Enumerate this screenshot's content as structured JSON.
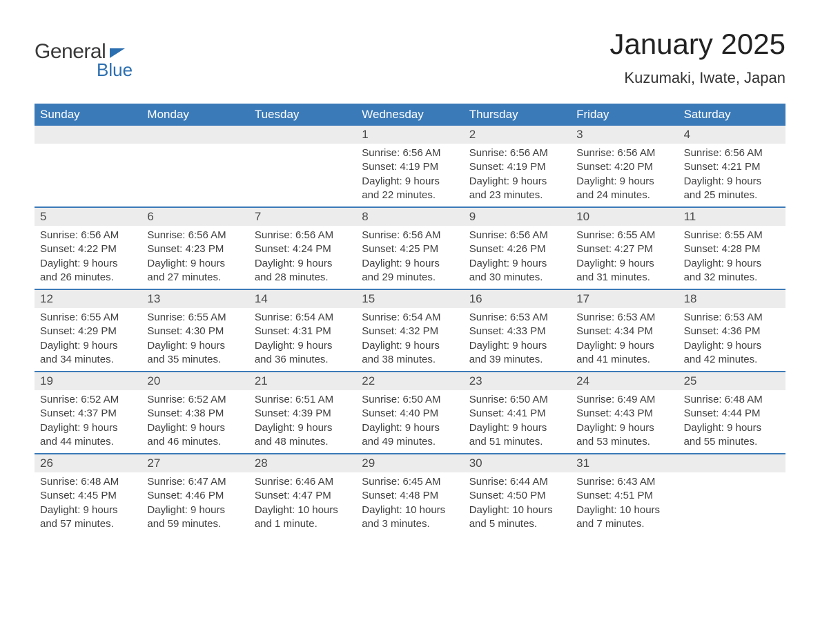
{
  "logo": {
    "text1": "General",
    "text2": "Blue"
  },
  "title": "January 2025",
  "location": "Kuzumaki, Iwate, Japan",
  "colors": {
    "header_bg": "#3b7ab8",
    "header_text": "#ffffff",
    "daynum_bg": "#ececec",
    "body_text": "#404040",
    "brand_blue": "#2c6fb0"
  },
  "typography": {
    "title_fontsize": 42,
    "location_fontsize": 22,
    "dayhead_fontsize": 17,
    "cell_fontsize": 15
  },
  "day_names": [
    "Sunday",
    "Monday",
    "Tuesday",
    "Wednesday",
    "Thursday",
    "Friday",
    "Saturday"
  ],
  "weeks": [
    [
      null,
      null,
      null,
      {
        "num": "1",
        "sunrise": "Sunrise: 6:56 AM",
        "sunset": "Sunset: 4:19 PM",
        "daylight": "Daylight: 9 hours and 22 minutes."
      },
      {
        "num": "2",
        "sunrise": "Sunrise: 6:56 AM",
        "sunset": "Sunset: 4:19 PM",
        "daylight": "Daylight: 9 hours and 23 minutes."
      },
      {
        "num": "3",
        "sunrise": "Sunrise: 6:56 AM",
        "sunset": "Sunset: 4:20 PM",
        "daylight": "Daylight: 9 hours and 24 minutes."
      },
      {
        "num": "4",
        "sunrise": "Sunrise: 6:56 AM",
        "sunset": "Sunset: 4:21 PM",
        "daylight": "Daylight: 9 hours and 25 minutes."
      }
    ],
    [
      {
        "num": "5",
        "sunrise": "Sunrise: 6:56 AM",
        "sunset": "Sunset: 4:22 PM",
        "daylight": "Daylight: 9 hours and 26 minutes."
      },
      {
        "num": "6",
        "sunrise": "Sunrise: 6:56 AM",
        "sunset": "Sunset: 4:23 PM",
        "daylight": "Daylight: 9 hours and 27 minutes."
      },
      {
        "num": "7",
        "sunrise": "Sunrise: 6:56 AM",
        "sunset": "Sunset: 4:24 PM",
        "daylight": "Daylight: 9 hours and 28 minutes."
      },
      {
        "num": "8",
        "sunrise": "Sunrise: 6:56 AM",
        "sunset": "Sunset: 4:25 PM",
        "daylight": "Daylight: 9 hours and 29 minutes."
      },
      {
        "num": "9",
        "sunrise": "Sunrise: 6:56 AM",
        "sunset": "Sunset: 4:26 PM",
        "daylight": "Daylight: 9 hours and 30 minutes."
      },
      {
        "num": "10",
        "sunrise": "Sunrise: 6:55 AM",
        "sunset": "Sunset: 4:27 PM",
        "daylight": "Daylight: 9 hours and 31 minutes."
      },
      {
        "num": "11",
        "sunrise": "Sunrise: 6:55 AM",
        "sunset": "Sunset: 4:28 PM",
        "daylight": "Daylight: 9 hours and 32 minutes."
      }
    ],
    [
      {
        "num": "12",
        "sunrise": "Sunrise: 6:55 AM",
        "sunset": "Sunset: 4:29 PM",
        "daylight": "Daylight: 9 hours and 34 minutes."
      },
      {
        "num": "13",
        "sunrise": "Sunrise: 6:55 AM",
        "sunset": "Sunset: 4:30 PM",
        "daylight": "Daylight: 9 hours and 35 minutes."
      },
      {
        "num": "14",
        "sunrise": "Sunrise: 6:54 AM",
        "sunset": "Sunset: 4:31 PM",
        "daylight": "Daylight: 9 hours and 36 minutes."
      },
      {
        "num": "15",
        "sunrise": "Sunrise: 6:54 AM",
        "sunset": "Sunset: 4:32 PM",
        "daylight": "Daylight: 9 hours and 38 minutes."
      },
      {
        "num": "16",
        "sunrise": "Sunrise: 6:53 AM",
        "sunset": "Sunset: 4:33 PM",
        "daylight": "Daylight: 9 hours and 39 minutes."
      },
      {
        "num": "17",
        "sunrise": "Sunrise: 6:53 AM",
        "sunset": "Sunset: 4:34 PM",
        "daylight": "Daylight: 9 hours and 41 minutes."
      },
      {
        "num": "18",
        "sunrise": "Sunrise: 6:53 AM",
        "sunset": "Sunset: 4:36 PM",
        "daylight": "Daylight: 9 hours and 42 minutes."
      }
    ],
    [
      {
        "num": "19",
        "sunrise": "Sunrise: 6:52 AM",
        "sunset": "Sunset: 4:37 PM",
        "daylight": "Daylight: 9 hours and 44 minutes."
      },
      {
        "num": "20",
        "sunrise": "Sunrise: 6:52 AM",
        "sunset": "Sunset: 4:38 PM",
        "daylight": "Daylight: 9 hours and 46 minutes."
      },
      {
        "num": "21",
        "sunrise": "Sunrise: 6:51 AM",
        "sunset": "Sunset: 4:39 PM",
        "daylight": "Daylight: 9 hours and 48 minutes."
      },
      {
        "num": "22",
        "sunrise": "Sunrise: 6:50 AM",
        "sunset": "Sunset: 4:40 PM",
        "daylight": "Daylight: 9 hours and 49 minutes."
      },
      {
        "num": "23",
        "sunrise": "Sunrise: 6:50 AM",
        "sunset": "Sunset: 4:41 PM",
        "daylight": "Daylight: 9 hours and 51 minutes."
      },
      {
        "num": "24",
        "sunrise": "Sunrise: 6:49 AM",
        "sunset": "Sunset: 4:43 PM",
        "daylight": "Daylight: 9 hours and 53 minutes."
      },
      {
        "num": "25",
        "sunrise": "Sunrise: 6:48 AM",
        "sunset": "Sunset: 4:44 PM",
        "daylight": "Daylight: 9 hours and 55 minutes."
      }
    ],
    [
      {
        "num": "26",
        "sunrise": "Sunrise: 6:48 AM",
        "sunset": "Sunset: 4:45 PM",
        "daylight": "Daylight: 9 hours and 57 minutes."
      },
      {
        "num": "27",
        "sunrise": "Sunrise: 6:47 AM",
        "sunset": "Sunset: 4:46 PM",
        "daylight": "Daylight: 9 hours and 59 minutes."
      },
      {
        "num": "28",
        "sunrise": "Sunrise: 6:46 AM",
        "sunset": "Sunset: 4:47 PM",
        "daylight": "Daylight: 10 hours and 1 minute."
      },
      {
        "num": "29",
        "sunrise": "Sunrise: 6:45 AM",
        "sunset": "Sunset: 4:48 PM",
        "daylight": "Daylight: 10 hours and 3 minutes."
      },
      {
        "num": "30",
        "sunrise": "Sunrise: 6:44 AM",
        "sunset": "Sunset: 4:50 PM",
        "daylight": "Daylight: 10 hours and 5 minutes."
      },
      {
        "num": "31",
        "sunrise": "Sunrise: 6:43 AM",
        "sunset": "Sunset: 4:51 PM",
        "daylight": "Daylight: 10 hours and 7 minutes."
      },
      null
    ]
  ]
}
